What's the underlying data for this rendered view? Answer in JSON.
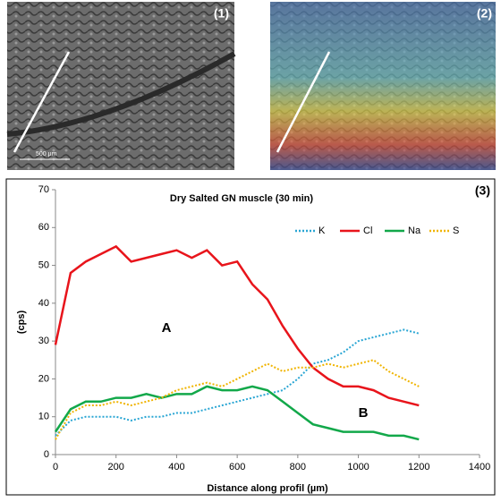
{
  "images": [
    {
      "label": "(1)",
      "scale": "500 µm"
    },
    {
      "label": "(2)"
    }
  ],
  "chart_data": {
    "type": "line",
    "title": "Dry Salted GN muscle (30 min)",
    "panel_label": "(3)",
    "annotations": [
      "A",
      "B"
    ],
    "x_label": "Distance along profil (µm)",
    "y_label": "(cps)",
    "x": [
      0,
      50,
      100,
      150,
      200,
      250,
      300,
      350,
      400,
      450,
      500,
      550,
      600,
      650,
      700,
      750,
      800,
      850,
      900,
      950,
      1000,
      1050,
      1100,
      1150,
      1200
    ],
    "series": [
      {
        "name": "K",
        "color": "#2aa6d4",
        "style": "dotted",
        "values": [
          5,
          9,
          10,
          10,
          10,
          9,
          10,
          10,
          11,
          11,
          12,
          13,
          14,
          15,
          16,
          17,
          20,
          24,
          25,
          27,
          30,
          31,
          32,
          33,
          32
        ]
      },
      {
        "name": "Cl",
        "color": "#e8141b",
        "style": "solid",
        "values": [
          29,
          48,
          51,
          53,
          55,
          51,
          52,
          53,
          54,
          52,
          54,
          50,
          51,
          45,
          41,
          34,
          28,
          23,
          20,
          18,
          18,
          17,
          15,
          14,
          13
        ]
      },
      {
        "name": "Na",
        "color": "#12a84a",
        "style": "solid",
        "values": [
          6,
          12,
          14,
          14,
          15,
          15,
          16,
          15,
          16,
          16,
          18,
          17,
          17,
          18,
          17,
          14,
          11,
          8,
          7,
          6,
          6,
          6,
          5,
          5,
          4
        ]
      },
      {
        "name": "S",
        "color": "#f0b400",
        "style": "dotted",
        "values": [
          4,
          11,
          13,
          13,
          14,
          13,
          14,
          15,
          17,
          18,
          19,
          18,
          20,
          22,
          24,
          22,
          23,
          23,
          24,
          23,
          24,
          25,
          22,
          20,
          18
        ]
      }
    ],
    "xlim": [
      0,
      1400
    ],
    "xticks": [
      0,
      200,
      400,
      600,
      800,
      1000,
      1200,
      1400
    ],
    "ylim": [
      0,
      70
    ],
    "yticks": [
      0,
      10,
      20,
      30,
      40,
      50,
      60,
      70
    ]
  }
}
